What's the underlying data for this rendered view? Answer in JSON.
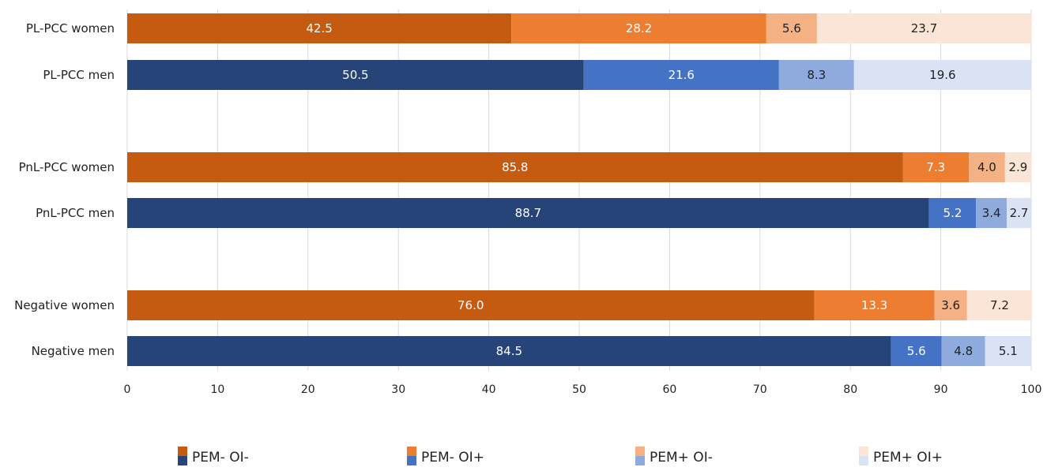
{
  "chart_data": {
    "type": "bar",
    "orientation": "horizontal",
    "stacked": true,
    "title": "",
    "xlabel": "",
    "ylabel": "",
    "xlim": [
      0,
      100
    ],
    "xticks": [
      "0",
      "10",
      "20",
      "30",
      "40",
      "50",
      "60",
      "70",
      "80",
      "90",
      "100"
    ],
    "grid": true,
    "legend_position": "bottom",
    "legend": [
      "PEM- OI-",
      "PEM- OI+",
      "PEM+ OI-",
      "PEM+ OI+"
    ],
    "rows": [
      {
        "name": "PL-PCC women",
        "palette": "women",
        "values": [
          42.5,
          28.2,
          5.6,
          23.7
        ],
        "labels": [
          "42.5",
          "28.2",
          "5.6",
          "23.7"
        ]
      },
      {
        "name": "PL-PCC men",
        "palette": "men",
        "values": [
          50.5,
          21.6,
          8.3,
          19.6
        ],
        "labels": [
          "50.5",
          "21.6",
          "8.3",
          "19.6"
        ]
      },
      {
        "name": "PnL-PCC women",
        "palette": "women",
        "values": [
          85.8,
          7.3,
          4.0,
          2.9
        ],
        "labels": [
          "85.8",
          "7.3",
          "4.0",
          "2.9"
        ]
      },
      {
        "name": "PnL-PCC men",
        "palette": "men",
        "values": [
          88.7,
          5.2,
          3.4,
          2.7
        ],
        "labels": [
          "88.7",
          "5.2",
          "3.4",
          "2.7"
        ]
      },
      {
        "name": "Negative women",
        "palette": "women",
        "values": [
          76.0,
          13.3,
          3.6,
          7.2
        ],
        "labels": [
          "76.0",
          "13.3",
          "3.6",
          "7.2"
        ]
      },
      {
        "name": "Negative men",
        "palette": "men",
        "values": [
          84.5,
          5.6,
          4.8,
          5.1
        ],
        "labels": [
          "84.5",
          "5.6",
          "4.8",
          "5.1"
        ]
      }
    ]
  },
  "colors": {
    "women": [
      "#c55a11",
      "#ed7d31",
      "#f4b183",
      "#fbe5d6"
    ],
    "men": [
      "#264478",
      "#4472c4",
      "#8faadc",
      "#dae3f3"
    ],
    "label_light": "#ffffff",
    "label_dark": "#222222",
    "grid": "#d9d9d9"
  }
}
